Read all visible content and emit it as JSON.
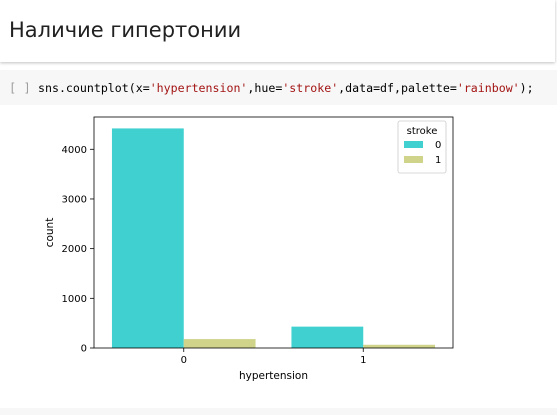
{
  "heading": {
    "title": "Наличие гипертонии"
  },
  "code_cell": {
    "bracket": "[ ]",
    "code_parts": {
      "p1": "sns.countplot(x=",
      "s1": "'hypertension'",
      "p2": ",hue=",
      "s2": "'stroke'",
      "p3": ",data=df,palette=",
      "s3": "'rainbow'",
      "p4": ");"
    }
  },
  "chart_data": {
    "type": "bar",
    "categories": [
      "0",
      "1"
    ],
    "series": [
      {
        "name": "0",
        "values": [
          4420,
          430
        ],
        "color": "#3fd0cf"
      },
      {
        "name": "1",
        "values": [
          180,
          65
        ],
        "color": "#cfd48a"
      }
    ],
    "xlabel": "hypertension",
    "ylabel": "count",
    "ylim": [
      0,
      4650
    ],
    "yticks": [
      0,
      1000,
      2000,
      3000,
      4000
    ],
    "legend": {
      "title": "stroke",
      "placement": "top-right"
    },
    "grid": false
  }
}
